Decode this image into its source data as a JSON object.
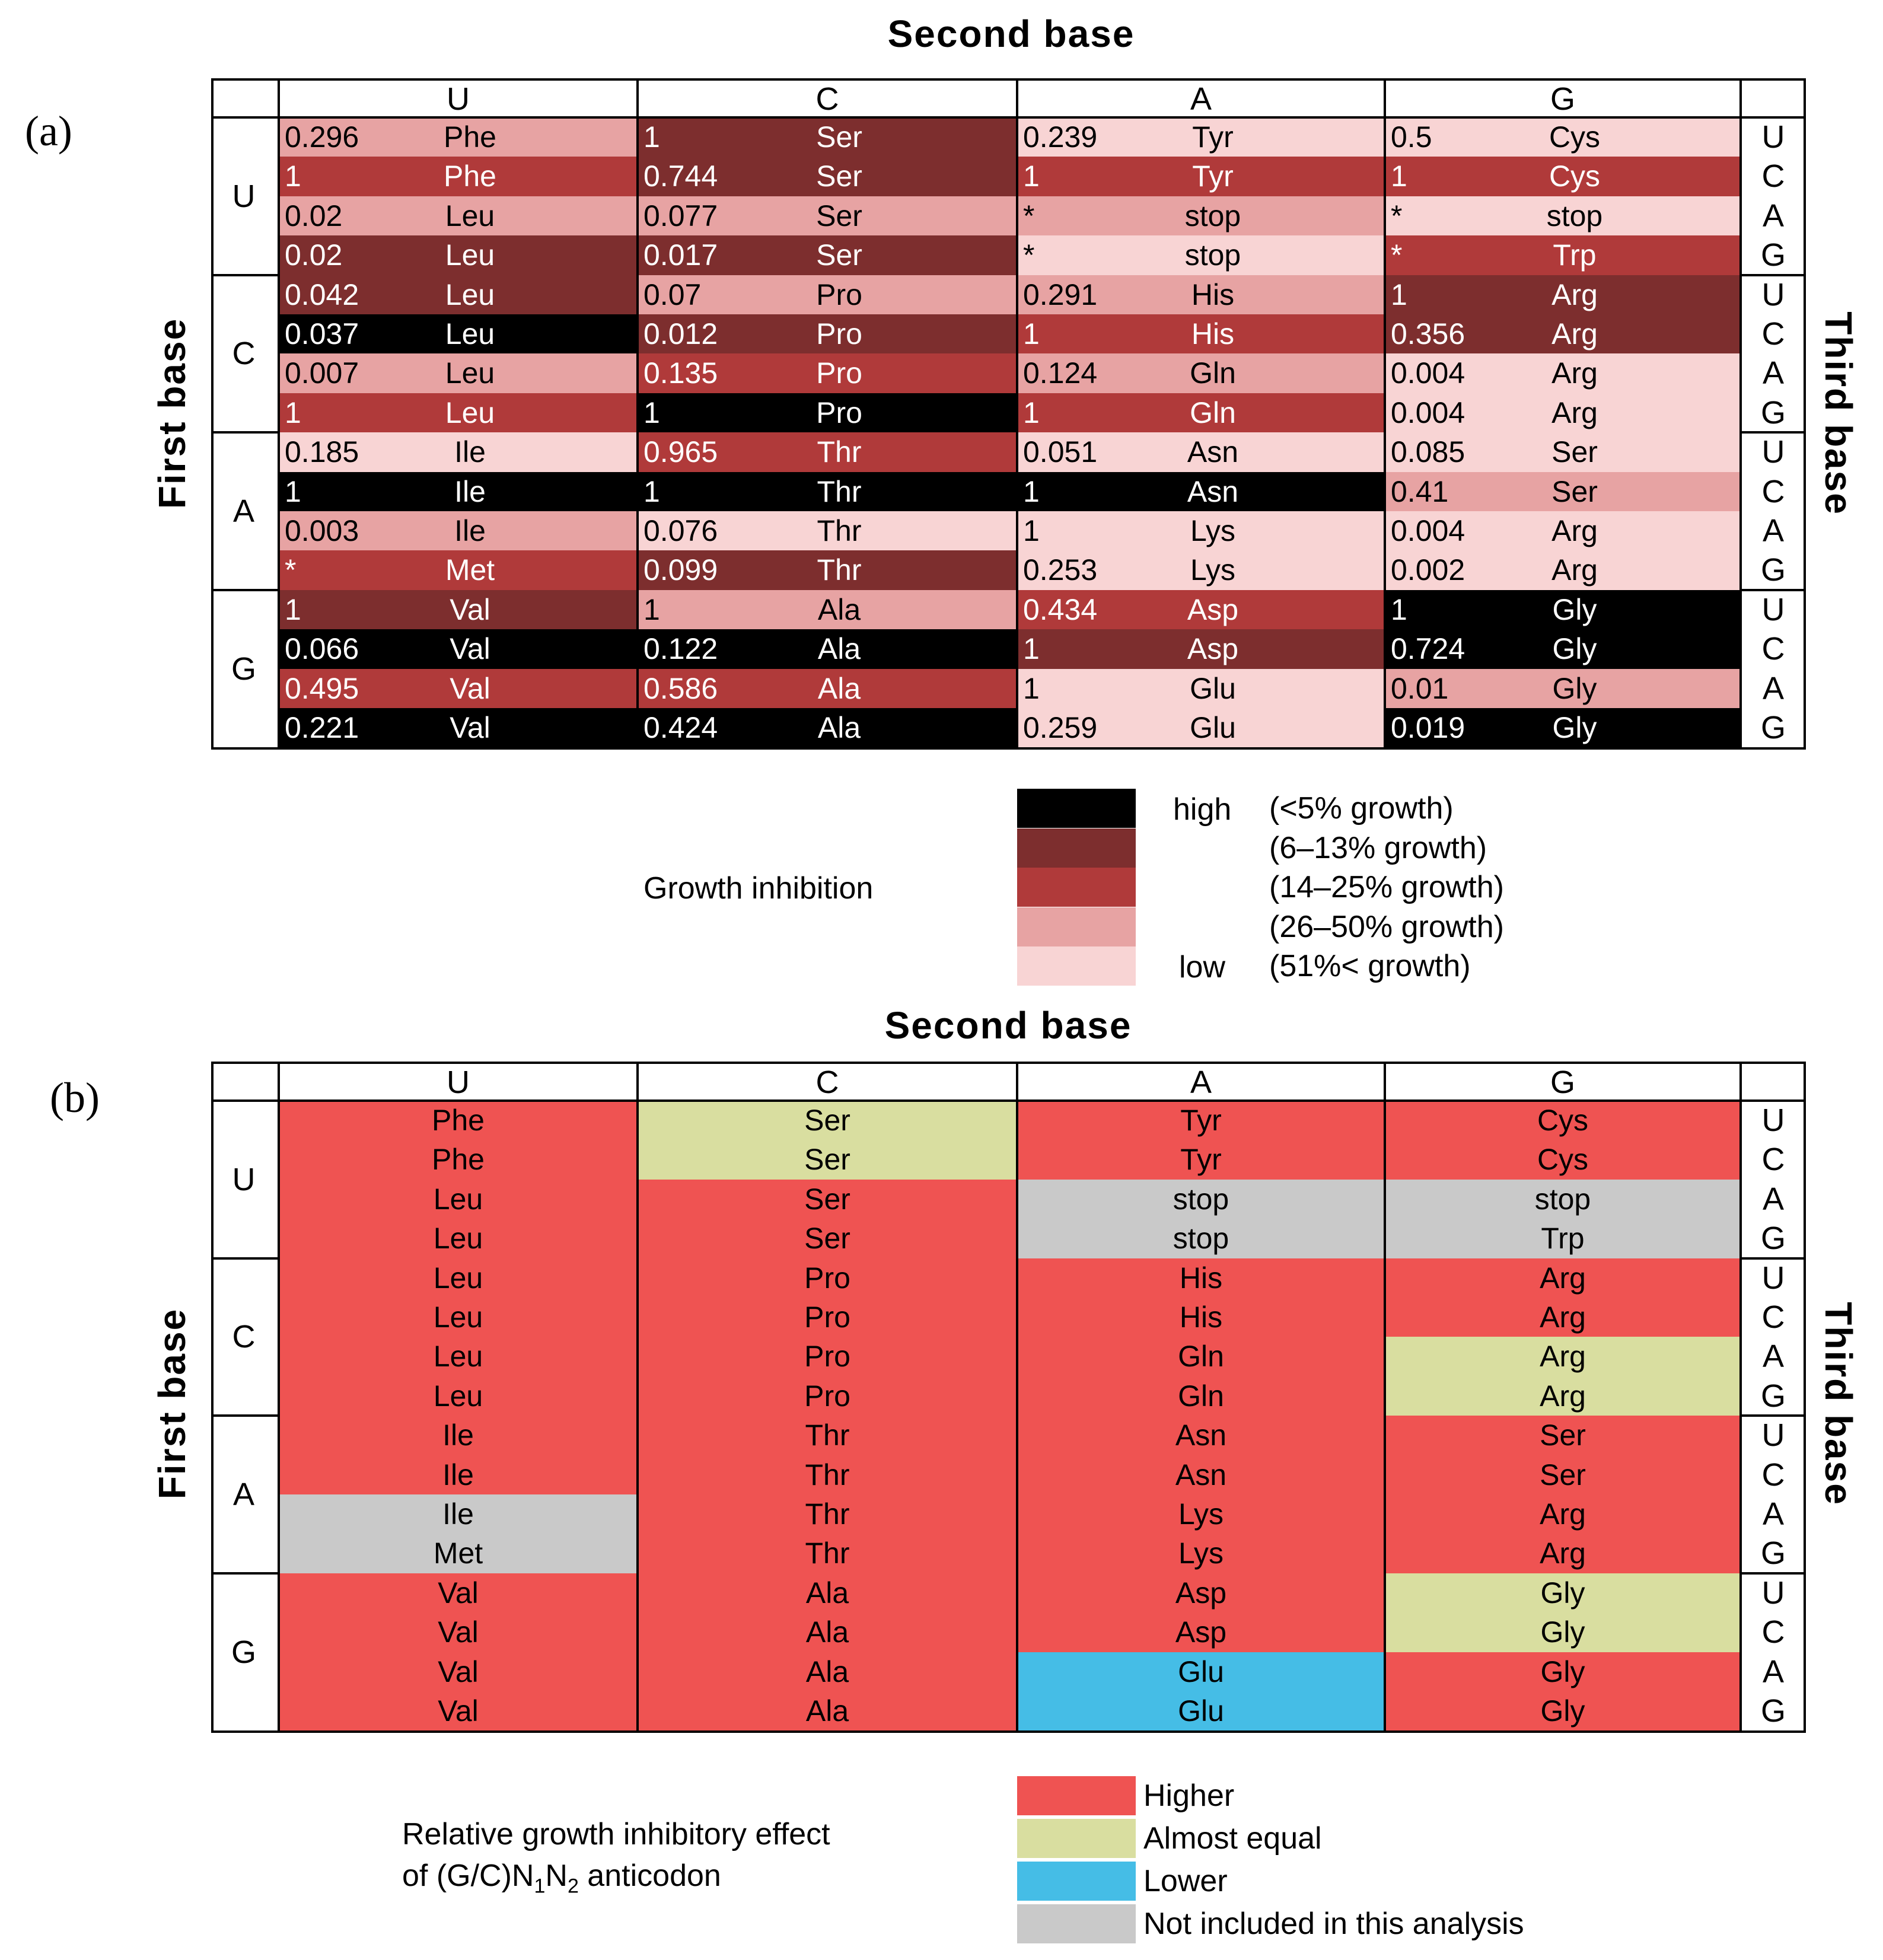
{
  "colors": {
    "high": "#000000",
    "lvl2": "#7d2e2e",
    "lvl3": "#b03a3a",
    "lvl4": "#e7a3a3",
    "low": "#f8d4d4",
    "higher": "#ef5352",
    "equal": "#d9dea0",
    "lower": "#45bde6",
    "notincl": "#c9c9c9"
  },
  "panel_a": {
    "label": "(a)",
    "second_base": "Second base",
    "first_base": "First base",
    "third_base": "Third base",
    "second_headers": [
      "U",
      "C",
      "A",
      "G"
    ],
    "first_headers": [
      "U",
      "C",
      "A",
      "G"
    ],
    "third_headers": [
      "U",
      "C",
      "A",
      "G",
      "U",
      "C",
      "A",
      "G",
      "U",
      "C",
      "A",
      "G",
      "U",
      "C",
      "A",
      "G"
    ],
    "rows": [
      [
        {
          "v": "0.296",
          "aa": "Phe",
          "c": "lvl4"
        },
        {
          "v": "1",
          "aa": "Ser",
          "c": "lvl2"
        },
        {
          "v": "0.239",
          "aa": "Tyr",
          "c": "low"
        },
        {
          "v": "0.5",
          "aa": "Cys",
          "c": "low"
        }
      ],
      [
        {
          "v": "1",
          "aa": "Phe",
          "c": "lvl3"
        },
        {
          "v": "0.744",
          "aa": "Ser",
          "c": "lvl2"
        },
        {
          "v": "1",
          "aa": "Tyr",
          "c": "lvl3"
        },
        {
          "v": "1",
          "aa": "Cys",
          "c": "lvl3"
        }
      ],
      [
        {
          "v": "0.02",
          "aa": "Leu",
          "c": "lvl4"
        },
        {
          "v": "0.077",
          "aa": "Ser",
          "c": "lvl4"
        },
        {
          "v": "*",
          "aa": "stop",
          "c": "lvl4"
        },
        {
          "v": "*",
          "aa": "stop",
          "c": "low"
        }
      ],
      [
        {
          "v": "0.02",
          "aa": "Leu",
          "c": "lvl2"
        },
        {
          "v": "0.017",
          "aa": "Ser",
          "c": "lvl2"
        },
        {
          "v": "*",
          "aa": "stop",
          "c": "low"
        },
        {
          "v": "*",
          "aa": "Trp",
          "c": "lvl3"
        }
      ],
      [
        {
          "v": "0.042",
          "aa": "Leu",
          "c": "lvl2"
        },
        {
          "v": "0.07",
          "aa": "Pro",
          "c": "lvl4"
        },
        {
          "v": "0.291",
          "aa": "His",
          "c": "lvl4"
        },
        {
          "v": "1",
          "aa": "Arg",
          "c": "lvl2"
        }
      ],
      [
        {
          "v": "0.037",
          "aa": "Leu",
          "c": "high"
        },
        {
          "v": "0.012",
          "aa": "Pro",
          "c": "lvl2"
        },
        {
          "v": "1",
          "aa": "His",
          "c": "lvl3"
        },
        {
          "v": "0.356",
          "aa": "Arg",
          "c": "lvl2"
        }
      ],
      [
        {
          "v": "0.007",
          "aa": "Leu",
          "c": "lvl4"
        },
        {
          "v": "0.135",
          "aa": "Pro",
          "c": "lvl3"
        },
        {
          "v": "0.124",
          "aa": "Gln",
          "c": "lvl4"
        },
        {
          "v": "0.004",
          "aa": "Arg",
          "c": "low"
        }
      ],
      [
        {
          "v": "1",
          "aa": "Leu",
          "c": "lvl3"
        },
        {
          "v": "1",
          "aa": "Pro",
          "c": "high"
        },
        {
          "v": "1",
          "aa": "Gln",
          "c": "lvl3"
        },
        {
          "v": "0.004",
          "aa": "Arg",
          "c": "low"
        }
      ],
      [
        {
          "v": "0.185",
          "aa": "Ile",
          "c": "low"
        },
        {
          "v": "0.965",
          "aa": "Thr",
          "c": "lvl3"
        },
        {
          "v": "0.051",
          "aa": "Asn",
          "c": "low"
        },
        {
          "v": "0.085",
          "aa": "Ser",
          "c": "low"
        }
      ],
      [
        {
          "v": "1",
          "aa": "Ile",
          "c": "high"
        },
        {
          "v": "1",
          "aa": "Thr",
          "c": "high"
        },
        {
          "v": "1",
          "aa": "Asn",
          "c": "high"
        },
        {
          "v": "0.41",
          "aa": "Ser",
          "c": "lvl4"
        }
      ],
      [
        {
          "v": "0.003",
          "aa": "Ile",
          "c": "lvl4"
        },
        {
          "v": "0.076",
          "aa": "Thr",
          "c": "low"
        },
        {
          "v": "1",
          "aa": "Lys",
          "c": "low"
        },
        {
          "v": "0.004",
          "aa": "Arg",
          "c": "low"
        }
      ],
      [
        {
          "v": "*",
          "aa": "Met",
          "c": "lvl3"
        },
        {
          "v": "0.099",
          "aa": "Thr",
          "c": "lvl2"
        },
        {
          "v": "0.253",
          "aa": "Lys",
          "c": "low"
        },
        {
          "v": "0.002",
          "aa": "Arg",
          "c": "low"
        }
      ],
      [
        {
          "v": "1",
          "aa": "Val",
          "c": "lvl2"
        },
        {
          "v": "1",
          "aa": "Ala",
          "c": "lvl4"
        },
        {
          "v": "0.434",
          "aa": "Asp",
          "c": "lvl3"
        },
        {
          "v": "1",
          "aa": "Gly",
          "c": "high"
        }
      ],
      [
        {
          "v": "0.066",
          "aa": "Val",
          "c": "high"
        },
        {
          "v": "0.122",
          "aa": "Ala",
          "c": "high"
        },
        {
          "v": "1",
          "aa": "Asp",
          "c": "lvl2"
        },
        {
          "v": "0.724",
          "aa": "Gly",
          "c": "high"
        }
      ],
      [
        {
          "v": "0.495",
          "aa": "Val",
          "c": "lvl3"
        },
        {
          "v": "0.586",
          "aa": "Ala",
          "c": "lvl3"
        },
        {
          "v": "1",
          "aa": "Glu",
          "c": "low"
        },
        {
          "v": "0.01",
          "aa": "Gly",
          "c": "lvl4"
        }
      ],
      [
        {
          "v": "0.221",
          "aa": "Val",
          "c": "high"
        },
        {
          "v": "0.424",
          "aa": "Ala",
          "c": "high"
        },
        {
          "v": "0.259",
          "aa": "Glu",
          "c": "low"
        },
        {
          "v": "0.019",
          "aa": "Gly",
          "c": "high"
        }
      ]
    ],
    "legend": {
      "title": "Growth inhibition",
      "high_label": "high",
      "low_label": "low",
      "items": [
        {
          "c": "high",
          "text": "(<5% growth)"
        },
        {
          "c": "lvl2",
          "text": "(6–13% growth)"
        },
        {
          "c": "lvl3",
          "text": "(14–25% growth)"
        },
        {
          "c": "lvl4",
          "text": "(26–50% growth)"
        },
        {
          "c": "low",
          "text": "(51%< growth)"
        }
      ]
    }
  },
  "panel_b": {
    "label": "(b)",
    "second_base": "Second base",
    "first_base": "First base",
    "third_base": "Third base",
    "second_headers": [
      "U",
      "C",
      "A",
      "G"
    ],
    "first_headers": [
      "U",
      "C",
      "A",
      "G"
    ],
    "third_headers": [
      "U",
      "C",
      "A",
      "G",
      "U",
      "C",
      "A",
      "G",
      "U",
      "C",
      "A",
      "G",
      "U",
      "C",
      "A",
      "G"
    ],
    "rows": [
      [
        {
          "aa": "Phe",
          "c": "higher"
        },
        {
          "aa": "Ser",
          "c": "equal"
        },
        {
          "aa": "Tyr",
          "c": "higher"
        },
        {
          "aa": "Cys",
          "c": "higher"
        }
      ],
      [
        {
          "aa": "Phe",
          "c": "higher"
        },
        {
          "aa": "Ser",
          "c": "equal"
        },
        {
          "aa": "Tyr",
          "c": "higher"
        },
        {
          "aa": "Cys",
          "c": "higher"
        }
      ],
      [
        {
          "aa": "Leu",
          "c": "higher"
        },
        {
          "aa": "Ser",
          "c": "higher"
        },
        {
          "aa": "stop",
          "c": "notincl"
        },
        {
          "aa": "stop",
          "c": "notincl"
        }
      ],
      [
        {
          "aa": "Leu",
          "c": "higher"
        },
        {
          "aa": "Ser",
          "c": "higher"
        },
        {
          "aa": "stop",
          "c": "notincl"
        },
        {
          "aa": "Trp",
          "c": "notincl"
        }
      ],
      [
        {
          "aa": "Leu",
          "c": "higher"
        },
        {
          "aa": "Pro",
          "c": "higher"
        },
        {
          "aa": "His",
          "c": "higher"
        },
        {
          "aa": "Arg",
          "c": "higher"
        }
      ],
      [
        {
          "aa": "Leu",
          "c": "higher"
        },
        {
          "aa": "Pro",
          "c": "higher"
        },
        {
          "aa": "His",
          "c": "higher"
        },
        {
          "aa": "Arg",
          "c": "higher"
        }
      ],
      [
        {
          "aa": "Leu",
          "c": "higher"
        },
        {
          "aa": "Pro",
          "c": "higher"
        },
        {
          "aa": "Gln",
          "c": "higher"
        },
        {
          "aa": "Arg",
          "c": "equal"
        }
      ],
      [
        {
          "aa": "Leu",
          "c": "higher"
        },
        {
          "aa": "Pro",
          "c": "higher"
        },
        {
          "aa": "Gln",
          "c": "higher"
        },
        {
          "aa": "Arg",
          "c": "equal"
        }
      ],
      [
        {
          "aa": "Ile",
          "c": "higher"
        },
        {
          "aa": "Thr",
          "c": "higher"
        },
        {
          "aa": "Asn",
          "c": "higher"
        },
        {
          "aa": "Ser",
          "c": "higher"
        }
      ],
      [
        {
          "aa": "Ile",
          "c": "higher"
        },
        {
          "aa": "Thr",
          "c": "higher"
        },
        {
          "aa": "Asn",
          "c": "higher"
        },
        {
          "aa": "Ser",
          "c": "higher"
        }
      ],
      [
        {
          "aa": "Ile",
          "c": "notincl"
        },
        {
          "aa": "Thr",
          "c": "higher"
        },
        {
          "aa": "Lys",
          "c": "higher"
        },
        {
          "aa": "Arg",
          "c": "higher"
        }
      ],
      [
        {
          "aa": "Met",
          "c": "notincl"
        },
        {
          "aa": "Thr",
          "c": "higher"
        },
        {
          "aa": "Lys",
          "c": "higher"
        },
        {
          "aa": "Arg",
          "c": "higher"
        }
      ],
      [
        {
          "aa": "Val",
          "c": "higher"
        },
        {
          "aa": "Ala",
          "c": "higher"
        },
        {
          "aa": "Asp",
          "c": "higher"
        },
        {
          "aa": "Gly",
          "c": "equal"
        }
      ],
      [
        {
          "aa": "Val",
          "c": "higher"
        },
        {
          "aa": "Ala",
          "c": "higher"
        },
        {
          "aa": "Asp",
          "c": "higher"
        },
        {
          "aa": "Gly",
          "c": "equal"
        }
      ],
      [
        {
          "aa": "Val",
          "c": "higher"
        },
        {
          "aa": "Ala",
          "c": "higher"
        },
        {
          "aa": "Glu",
          "c": "lower"
        },
        {
          "aa": "Gly",
          "c": "higher"
        }
      ],
      [
        {
          "aa": "Val",
          "c": "higher"
        },
        {
          "aa": "Ala",
          "c": "higher"
        },
        {
          "aa": "Glu",
          "c": "lower"
        },
        {
          "aa": "Gly",
          "c": "higher"
        }
      ]
    ],
    "legend": {
      "title_line1": "Relative growth inhibitory effect",
      "title_line2_pre": "of (G/C)N",
      "title_line2_sub1": "1",
      "title_line2_mid": "N",
      "title_line2_sub2": "2",
      "title_line2_post": " anticodon",
      "items": [
        {
          "c": "higher",
          "text": "Higher"
        },
        {
          "c": "equal",
          "text": "Almost equal"
        },
        {
          "c": "lower",
          "text": "Lower"
        },
        {
          "c": "notincl",
          "text": "Not included in this analysis"
        }
      ]
    }
  }
}
